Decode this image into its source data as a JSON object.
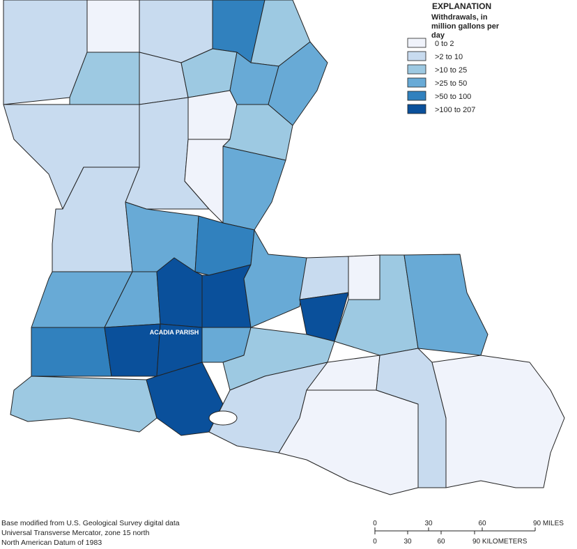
{
  "legend": {
    "title": "EXPLANATION",
    "subtitle": "Withdrawals, in million gallons per day",
    "items": [
      {
        "label": "0 to 2",
        "color": "#f0f3fb"
      },
      {
        "label": ">2 to 10",
        "color": "#c8dbef"
      },
      {
        "label": ">10 to 25",
        "color": "#9dc9e2"
      },
      {
        "label": ">25 to 50",
        "color": "#68aad6"
      },
      {
        "label": ">50 to 100",
        "color": "#3181be"
      },
      {
        "label": ">100 to 207",
        "color": "#0a509b"
      }
    ]
  },
  "map_label": "ACADIA PARISH",
  "source_notes": [
    "Base modified from U.S. Geological Survey digital data",
    "Universal Transverse Mercator, zone 15 north",
    "North American Datum of 1983"
  ],
  "scale_bar": {
    "miles": [
      "0",
      "30",
      "60",
      "90 MILES"
    ],
    "kilometers": [
      "0",
      "30",
      "60",
      "90 KILOMETERS"
    ]
  }
}
